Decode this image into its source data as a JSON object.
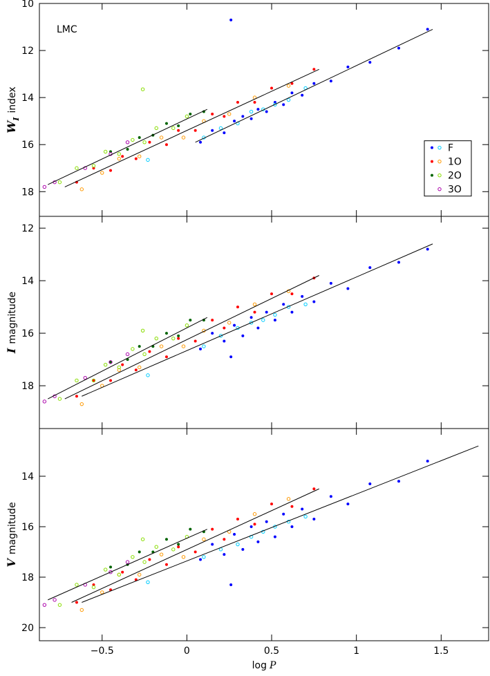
{
  "chart_data": [
    {
      "type": "scatter",
      "annotation": "LMC",
      "ylabel": {
        "symbol": "W",
        "subscript": "I",
        "text": "index"
      },
      "xlim": [
        -0.87,
        1.78
      ],
      "xticks": [
        -0.5,
        0,
        0.5,
        1,
        1.5
      ],
      "ylim": [
        19.05,
        10
      ],
      "yticks": [
        10,
        12,
        14,
        16,
        18
      ],
      "legend": "right",
      "series": [
        {
          "name": "F",
          "color": "#0000ff",
          "open_color": "#00ccff",
          "filled": {
            "x": [
              0.08,
              0.15,
              0.22,
              0.28,
              0.33,
              0.38,
              0.42,
              0.47,
              0.52,
              0.57,
              0.62,
              0.68,
              0.75,
              0.85,
              0.95,
              1.08,
              1.25,
              1.42,
              0.26
            ],
            "values": [
              15.9,
              15.4,
              15.5,
              15.0,
              14.8,
              14.9,
              14.5,
              14.6,
              14.2,
              14.3,
              13.8,
              13.9,
              13.4,
              13.3,
              12.7,
              12.5,
              11.9,
              11.1,
              10.7
            ]
          },
          "open": {
            "x": [
              -0.23,
              0.1,
              0.2,
              0.3,
              0.38,
              0.45,
              0.52,
              0.6,
              0.7
            ],
            "values": [
              16.65,
              15.7,
              15.3,
              15.1,
              14.6,
              14.5,
              14.3,
              14.1,
              13.6
            ]
          }
        },
        {
          "name": "1O",
          "color": "#ff0000",
          "open_color": "#ff9900",
          "filled": {
            "x": [
              -0.65,
              -0.55,
              -0.45,
              -0.38,
              -0.3,
              -0.22,
              -0.12,
              -0.05,
              0.05,
              0.15,
              0.22,
              0.3,
              0.4,
              0.5,
              0.62,
              0.75
            ],
            "values": [
              17.6,
              17.0,
              17.1,
              16.5,
              16.6,
              15.9,
              16.0,
              15.4,
              15.4,
              14.7,
              14.8,
              14.2,
              14.2,
              13.6,
              13.4,
              12.8
            ]
          },
          "open": {
            "x": [
              -0.62,
              -0.5,
              -0.4,
              -0.28,
              -0.15,
              -0.02,
              0.1,
              0.25,
              0.4,
              0.6
            ],
            "values": [
              17.9,
              17.2,
              16.6,
              16.5,
              15.7,
              15.7,
              15.0,
              14.7,
              14.0,
              13.5
            ]
          }
        },
        {
          "name": "2O",
          "color": "#006400",
          "open_color": "#88dd00",
          "filled": {
            "x": [
              -0.45,
              -0.35,
              -0.28,
              -0.2,
              -0.12,
              -0.05,
              0.02,
              0.1
            ],
            "values": [
              16.3,
              16.2,
              15.7,
              15.6,
              15.1,
              15.2,
              14.7,
              14.6
            ]
          },
          "open": {
            "x": [
              -0.75,
              -0.65,
              -0.55,
              -0.48,
              -0.4,
              -0.32,
              -0.25,
              -0.18,
              -0.08,
              0.0,
              -0.26
            ],
            "values": [
              17.6,
              17.0,
              16.9,
              16.3,
              16.4,
              15.8,
              15.9,
              15.3,
              15.3,
              14.8,
              13.65
            ]
          }
        },
        {
          "name": "3O",
          "open_color": "#aa00aa",
          "open": {
            "x": [
              -0.84,
              -0.78,
              -0.6,
              -0.45,
              -0.35
            ],
            "values": [
              17.8,
              17.6,
              17.0,
              16.4,
              15.9
            ]
          }
        }
      ],
      "fits": [
        {
          "x": [
            -0.82,
            0.12
          ],
          "values": [
            17.7,
            14.5
          ]
        },
        {
          "x": [
            -0.72,
            0.78
          ],
          "values": [
            17.8,
            12.8
          ]
        },
        {
          "x": [
            0.05,
            1.45
          ],
          "values": [
            15.9,
            11.1
          ]
        }
      ]
    },
    {
      "type": "scatter",
      "ylabel": {
        "symbol": "I",
        "text": "magnitude"
      },
      "xlim": [
        -0.87,
        1.78
      ],
      "xticks": [
        -0.5,
        0,
        0.5,
        1,
        1.5
      ],
      "ylim": [
        19.63,
        11.55
      ],
      "yticks": [
        12,
        14,
        16,
        18
      ],
      "series": [
        {
          "color": "#0000ff",
          "open_color": "#00ccff",
          "filled": {
            "x": [
              0.08,
              0.15,
              0.22,
              0.28,
              0.33,
              0.38,
              0.42,
              0.47,
              0.52,
              0.57,
              0.62,
              0.68,
              0.75,
              0.85,
              0.95,
              1.08,
              1.25,
              1.42,
              0.26
            ],
            "values": [
              16.6,
              16.0,
              16.3,
              15.7,
              16.1,
              15.4,
              15.8,
              15.2,
              15.5,
              14.9,
              15.2,
              14.6,
              14.8,
              14.1,
              14.3,
              13.5,
              13.3,
              12.8,
              16.9
            ]
          },
          "open": {
            "x": [
              -0.23,
              0.1,
              0.2,
              0.3,
              0.38,
              0.45,
              0.52,
              0.6,
              0.7
            ],
            "values": [
              17.6,
              16.5,
              16.1,
              15.8,
              15.6,
              15.5,
              15.3,
              15.0,
              14.9
            ]
          }
        },
        {
          "color": "#ff0000",
          "open_color": "#ff9900",
          "filled": {
            "x": [
              -0.65,
              -0.55,
              -0.45,
              -0.38,
              -0.3,
              -0.22,
              -0.12,
              -0.05,
              0.05,
              0.15,
              0.22,
              0.3,
              0.4,
              0.5,
              0.62,
              0.75
            ],
            "values": [
              18.4,
              17.8,
              17.8,
              17.2,
              17.4,
              16.7,
              16.9,
              16.2,
              16.3,
              15.5,
              15.8,
              15.0,
              15.2,
              14.5,
              14.5,
              13.9
            ]
          },
          "open": {
            "x": [
              -0.62,
              -0.5,
              -0.4,
              -0.28,
              -0.15,
              -0.02,
              0.1,
              0.25,
              0.4,
              0.6
            ],
            "values": [
              18.7,
              18.0,
              17.4,
              17.3,
              16.5,
              16.5,
              15.9,
              15.6,
              14.9,
              14.4
            ]
          }
        },
        {
          "color": "#006400",
          "open_color": "#88dd00",
          "filled": {
            "x": [
              -0.45,
              -0.35,
              -0.28,
              -0.2,
              -0.12,
              -0.05,
              0.02,
              0.1
            ],
            "values": [
              17.1,
              17.0,
              16.5,
              16.5,
              16.0,
              16.1,
              15.5,
              15.5
            ]
          },
          "open": {
            "x": [
              -0.75,
              -0.65,
              -0.55,
              -0.48,
              -0.4,
              -0.32,
              -0.25,
              -0.18,
              -0.08,
              0.0,
              -0.26
            ],
            "values": [
              18.5,
              17.8,
              17.8,
              17.2,
              17.3,
              16.6,
              16.8,
              16.2,
              16.2,
              15.7,
              15.9
            ]
          }
        },
        {
          "open_color": "#aa00aa",
          "open": {
            "x": [
              -0.84,
              -0.78,
              -0.6,
              -0.45,
              -0.35
            ],
            "values": [
              18.6,
              18.4,
              17.7,
              17.1,
              16.8
            ]
          }
        }
      ],
      "fits": [
        {
          "x": [
            -0.82,
            0.12
          ],
          "values": [
            18.5,
            15.4
          ]
        },
        {
          "x": [
            -0.72,
            0.78
          ],
          "values": [
            18.5,
            13.8
          ]
        },
        {
          "x": [
            -0.62,
            1.45
          ],
          "values": [
            18.4,
            12.6
          ]
        }
      ]
    },
    {
      "type": "scatter",
      "ylabel": {
        "symbol": "V",
        "text": "magnitude"
      },
      "xlabel": {
        "text": "log",
        "symbol": "P"
      },
      "xlim": [
        -0.87,
        1.78
      ],
      "xticks": [
        {
          "value": -0.5,
          "label": "−0.5"
        },
        0,
        0.5,
        1,
        1.5
      ],
      "ylim": [
        20.52,
        12.11
      ],
      "yticks": [
        14,
        16,
        18,
        20
      ],
      "series": [
        {
          "color": "#0000ff",
          "open_color": "#00ccff",
          "filled": {
            "x": [
              0.08,
              0.15,
              0.22,
              0.28,
              0.33,
              0.38,
              0.42,
              0.47,
              0.52,
              0.57,
              0.62,
              0.68,
              0.75,
              0.85,
              0.95,
              1.08,
              1.25,
              1.42,
              0.26
            ],
            "values": [
              17.3,
              16.7,
              17.1,
              16.3,
              16.9,
              16.0,
              16.6,
              15.8,
              16.4,
              15.5,
              16.0,
              15.3,
              15.7,
              14.8,
              15.1,
              14.3,
              14.2,
              13.4,
              18.3
            ]
          },
          "open": {
            "x": [
              -0.23,
              0.1,
              0.2,
              0.3,
              0.38,
              0.45,
              0.52,
              0.6,
              0.7
            ],
            "values": [
              18.2,
              17.2,
              16.9,
              16.7,
              16.4,
              16.2,
              16.0,
              15.8,
              15.6
            ]
          }
        },
        {
          "color": "#ff0000",
          "open_color": "#ff9900",
          "filled": {
            "x": [
              -0.65,
              -0.55,
              -0.45,
              -0.38,
              -0.3,
              -0.22,
              -0.12,
              -0.05,
              0.05,
              0.15,
              0.22,
              0.3,
              0.4,
              0.5,
              0.62,
              0.75
            ],
            "values": [
              19.0,
              18.3,
              18.5,
              17.8,
              18.1,
              17.3,
              17.5,
              16.8,
              17.0,
              16.1,
              16.5,
              15.7,
              15.9,
              15.1,
              15.2,
              14.5
            ]
          },
          "open": {
            "x": [
              -0.62,
              -0.5,
              -0.4,
              -0.28,
              -0.15,
              -0.02,
              0.1,
              0.25,
              0.4,
              0.6
            ],
            "values": [
              19.3,
              18.6,
              17.9,
              17.9,
              17.1,
              17.2,
              16.5,
              16.2,
              15.5,
              14.9
            ]
          }
        },
        {
          "color": "#006400",
          "open_color": "#88dd00",
          "filled": {
            "x": [
              -0.45,
              -0.35,
              -0.28,
              -0.2,
              -0.12,
              -0.05,
              0.02,
              0.1
            ],
            "values": [
              17.6,
              17.5,
              17.0,
              17.0,
              16.5,
              16.7,
              16.1,
              16.2
            ]
          },
          "open": {
            "x": [
              -0.75,
              -0.65,
              -0.55,
              -0.48,
              -0.4,
              -0.32,
              -0.25,
              -0.18,
              -0.08,
              0.0,
              -0.26
            ],
            "values": [
              19.1,
              18.3,
              18.4,
              17.7,
              17.9,
              17.2,
              17.4,
              16.8,
              16.9,
              16.4,
              16.5
            ]
          }
        },
        {
          "open_color": "#aa00aa",
          "open": {
            "x": [
              -0.84,
              -0.78,
              -0.6,
              -0.45,
              -0.35
            ],
            "values": [
              19.1,
              18.9,
              18.3,
              17.8,
              17.4
            ]
          }
        }
      ],
      "fits": [
        {
          "x": [
            -0.82,
            0.12
          ],
          "values": [
            18.9,
            16.1
          ]
        },
        {
          "x": [
            -0.68,
            0.78
          ],
          "values": [
            19.0,
            14.5
          ]
        },
        {
          "x": [
            -0.62,
            1.72
          ],
          "values": [
            19.0,
            12.8
          ]
        }
      ]
    }
  ]
}
